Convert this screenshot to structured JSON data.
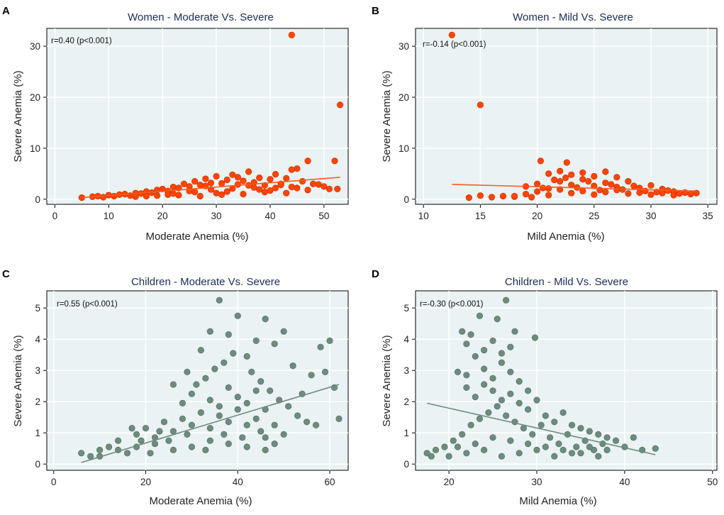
{
  "chart_data": [
    {
      "panel_label": "A",
      "type": "scatter",
      "title": "Women - Moderate Vs. Severe",
      "xlabel": "Moderate Anemia (%)",
      "ylabel": "Severe Anemia (%)",
      "xlim": [
        -1.5,
        54.5
      ],
      "ylim": [
        -1,
        33.5
      ],
      "xticks": [
        0,
        10,
        20,
        30,
        40,
        50
      ],
      "yticks": [
        0,
        10,
        20,
        30
      ],
      "annotation": "r=0.40 (p<0.001)",
      "point_color": "#ff4500",
      "point_stroke": "#d03000",
      "line_color": "#ff5a1f",
      "fit_line": [
        [
          5,
          0.3
        ],
        [
          53,
          4.3
        ]
      ],
      "points": [
        [
          44,
          32.2
        ],
        [
          53,
          18.5
        ],
        [
          52,
          7.5
        ],
        [
          45,
          6
        ],
        [
          44,
          5.8
        ],
        [
          47,
          7.5
        ],
        [
          51,
          2
        ],
        [
          52.5,
          2
        ],
        [
          5,
          0.3
        ],
        [
          7,
          0.5
        ],
        [
          8,
          0.6
        ],
        [
          9,
          0.4
        ],
        [
          10,
          0.8
        ],
        [
          11,
          0.6
        ],
        [
          12,
          0.9
        ],
        [
          13,
          1
        ],
        [
          14,
          0.7
        ],
        [
          15,
          1.2
        ],
        [
          16,
          1.1
        ],
        [
          17,
          1.5
        ],
        [
          18,
          1.3
        ],
        [
          19,
          1.8
        ],
        [
          20,
          2
        ],
        [
          21,
          1.6
        ],
        [
          22,
          2.4
        ],
        [
          23,
          2.2
        ],
        [
          24,
          3
        ],
        [
          25,
          2.5
        ],
        [
          26,
          3.5
        ],
        [
          27,
          2.8
        ],
        [
          28,
          4
        ],
        [
          29,
          3.2
        ],
        [
          30,
          4.5
        ],
        [
          31,
          3.1
        ],
        [
          32,
          3.8
        ],
        [
          33,
          4.8
        ],
        [
          34,
          2.9
        ],
        [
          35,
          3.6
        ],
        [
          36,
          5.4
        ],
        [
          37,
          3.3
        ],
        [
          38,
          4.2
        ],
        [
          39,
          2.7
        ],
        [
          40,
          3.9
        ],
        [
          41,
          4.9
        ],
        [
          42,
          3
        ],
        [
          43,
          4.1
        ],
        [
          44,
          2.4
        ],
        [
          46,
          3.5
        ],
        [
          48,
          3
        ],
        [
          50,
          2.5
        ],
        [
          23,
          0.8
        ],
        [
          27,
          0.6
        ],
        [
          31,
          0.9
        ],
        [
          35,
          1
        ],
        [
          39,
          1.4
        ],
        [
          43,
          1.2
        ],
        [
          47,
          1.8
        ],
        [
          25,
          1.6
        ],
        [
          29,
          1.9
        ],
        [
          33,
          2.1
        ],
        [
          37,
          2.3
        ],
        [
          41,
          2.2
        ],
        [
          21,
          0.9
        ],
        [
          19,
          0.7
        ],
        [
          17,
          0.6
        ],
        [
          15,
          0.5
        ],
        [
          34,
          4.3
        ],
        [
          28,
          2.6
        ],
        [
          32,
          1.5
        ],
        [
          36,
          2.7
        ],
        [
          40,
          1.7
        ],
        [
          30,
          1.2
        ],
        [
          26,
          1.4
        ],
        [
          22,
          1.1
        ],
        [
          38,
          1.9
        ],
        [
          42,
          2.8
        ],
        [
          45,
          2.2
        ],
        [
          49,
          2.9
        ]
      ]
    },
    {
      "panel_label": "B",
      "type": "scatter",
      "title": "Women - Mild Vs. Severe",
      "xlabel": "Mild Anemia (%)",
      "ylabel": "Severe Anemia (%)",
      "xlim": [
        9.3,
        35.8
      ],
      "ylim": [
        -1,
        33.5
      ],
      "xticks": [
        10,
        15,
        20,
        25,
        30,
        35
      ],
      "yticks": [
        0,
        10,
        20,
        30
      ],
      "annotation": "r=-0.14 (p<0.001)",
      "point_color": "#ff4500",
      "point_stroke": "#d03000",
      "line_color": "#ff5a1f",
      "fit_line": [
        [
          12.5,
          2.9
        ],
        [
          34,
          1.6
        ]
      ],
      "points": [
        [
          12.5,
          32.2
        ],
        [
          15,
          18.5
        ],
        [
          14,
          0.3
        ],
        [
          15,
          0.7
        ],
        [
          16,
          0.4
        ],
        [
          17,
          0.6
        ],
        [
          18,
          0.5
        ],
        [
          20.3,
          7.5
        ],
        [
          22.6,
          7.2
        ],
        [
          21,
          5
        ],
        [
          22,
          5.5
        ],
        [
          23,
          4.8
        ],
        [
          24,
          5.2
        ],
        [
          25,
          4.5
        ],
        [
          26,
          5.4
        ],
        [
          27,
          4.3
        ],
        [
          19,
          2.5
        ],
        [
          20,
          3
        ],
        [
          21,
          2.1
        ],
        [
          22,
          3.5
        ],
        [
          23,
          2.8
        ],
        [
          24,
          3.9
        ],
        [
          25,
          2.6
        ],
        [
          26,
          3.2
        ],
        [
          27,
          2.4
        ],
        [
          28,
          3.5
        ],
        [
          29,
          2.2
        ],
        [
          30,
          2.7
        ],
        [
          31,
          2
        ],
        [
          32,
          1.5
        ],
        [
          33,
          1.3
        ],
        [
          34,
          1.2
        ],
        [
          19,
          1
        ],
        [
          20,
          1.5
        ],
        [
          21,
          0.8
        ],
        [
          22,
          1.9
        ],
        [
          23,
          1.2
        ],
        [
          24,
          1.6
        ],
        [
          25,
          0.9
        ],
        [
          26,
          1.4
        ],
        [
          27,
          1.8
        ],
        [
          28,
          1.1
        ],
        [
          29,
          1.3
        ],
        [
          30,
          0.9
        ],
        [
          31,
          1.2
        ],
        [
          32,
          0.8
        ],
        [
          18,
          0.6
        ],
        [
          19.5,
          0.4
        ],
        [
          20.5,
          2.2
        ],
        [
          21.5,
          3.8
        ],
        [
          22.5,
          4.2
        ],
        [
          23.5,
          2.3
        ],
        [
          24.5,
          3.5
        ],
        [
          25.5,
          1.8
        ],
        [
          26.5,
          2.9
        ],
        [
          27.5,
          1.9
        ],
        [
          28.5,
          2.6
        ],
        [
          29.5,
          1.6
        ],
        [
          30.5,
          1.4
        ],
        [
          31.5,
          1.7
        ],
        [
          32.5,
          1.1
        ],
        [
          33.5,
          1
        ]
      ]
    },
    {
      "panel_label": "C",
      "type": "scatter",
      "title": "Children - Moderate Vs. Severe",
      "xlabel": "Moderate Anemia (%)",
      "ylabel": "Severe Anemia (%)",
      "xlim": [
        -1.5,
        64
      ],
      "ylim": [
        -0.2,
        5.55
      ],
      "xticks": [
        0,
        20,
        40,
        60
      ],
      "yticks": [
        0,
        1,
        2,
        3,
        4,
        5
      ],
      "annotation": "r=0.55 (p<0.001)",
      "point_color": "#6e8c7e",
      "point_stroke": "#5a7567",
      "line_color": "#6e8c7e",
      "fit_line": [
        [
          6,
          0.05
        ],
        [
          62,
          2.55
        ]
      ],
      "points": [
        [
          36,
          5.25
        ],
        [
          40,
          4.75
        ],
        [
          46,
          4.65
        ],
        [
          34,
          4.25
        ],
        [
          38,
          4.15
        ],
        [
          50,
          4.25
        ],
        [
          32,
          3.65
        ],
        [
          44,
          3.95
        ],
        [
          39,
          3.55
        ],
        [
          42,
          3.45
        ],
        [
          48,
          3.85
        ],
        [
          58,
          3.75
        ],
        [
          60,
          3.95
        ],
        [
          52,
          3.15
        ],
        [
          56,
          2.85
        ],
        [
          62,
          1.45
        ],
        [
          59,
          2.95
        ],
        [
          61,
          2.45
        ],
        [
          54,
          2.25
        ],
        [
          57,
          1.25
        ],
        [
          29,
          2.95
        ],
        [
          35,
          3.05
        ],
        [
          31,
          2.55
        ],
        [
          33,
          2.75
        ],
        [
          37,
          3.25
        ],
        [
          43,
          2.95
        ],
        [
          45,
          2.65
        ],
        [
          47,
          2.35
        ],
        [
          49,
          2.05
        ],
        [
          51,
          1.85
        ],
        [
          53,
          1.55
        ],
        [
          55,
          1.35
        ],
        [
          26,
          2.55
        ],
        [
          28,
          1.95
        ],
        [
          30,
          2.25
        ],
        [
          34,
          2.05
        ],
        [
          36,
          1.85
        ],
        [
          38,
          2.45
        ],
        [
          40,
          2.15
        ],
        [
          42,
          1.95
        ],
        [
          44,
          2.35
        ],
        [
          46,
          1.75
        ],
        [
          48,
          1.25
        ],
        [
          50,
          0.95
        ],
        [
          6,
          0.35
        ],
        [
          8,
          0.25
        ],
        [
          10,
          0.45
        ],
        [
          12,
          0.55
        ],
        [
          14,
          0.75
        ],
        [
          16,
          0.35
        ],
        [
          18,
          0.95
        ],
        [
          20,
          1.15
        ],
        [
          22,
          0.85
        ],
        [
          24,
          1.35
        ],
        [
          26,
          1.05
        ],
        [
          28,
          1.45
        ],
        [
          30,
          1.25
        ],
        [
          32,
          1.65
        ],
        [
          34,
          1.15
        ],
        [
          36,
          1.55
        ],
        [
          38,
          1.35
        ],
        [
          40,
          1.75
        ],
        [
          42,
          1.25
        ],
        [
          44,
          1.45
        ],
        [
          46,
          0.85
        ],
        [
          48,
          0.65
        ],
        [
          10,
          0.25
        ],
        [
          14,
          0.45
        ],
        [
          18,
          0.55
        ],
        [
          22,
          0.65
        ],
        [
          26,
          0.45
        ],
        [
          30,
          0.55
        ],
        [
          34,
          0.75
        ],
        [
          38,
          0.65
        ],
        [
          42,
          0.55
        ],
        [
          46,
          0.45
        ],
        [
          17,
          1.15
        ],
        [
          21,
          0.35
        ],
        [
          25,
          0.75
        ],
        [
          29,
          0.95
        ],
        [
          33,
          0.45
        ],
        [
          37,
          0.95
        ],
        [
          41,
          0.85
        ],
        [
          45,
          1.05
        ],
        [
          19,
          0.75
        ],
        [
          23,
          1.05
        ]
      ]
    },
    {
      "panel_label": "D",
      "type": "scatter",
      "title": "Children - Mild Vs. Severe",
      "xlabel": "Mild Anemia (%)",
      "ylabel": "Severe Anemia (%)",
      "xlim": [
        16.2,
        50.5
      ],
      "ylim": [
        -0.2,
        5.55
      ],
      "xticks": [
        20,
        30,
        40,
        50
      ],
      "yticks": [
        0,
        1,
        2,
        3,
        4,
        5
      ],
      "annotation": "r=-0.30 (p<0.001)",
      "point_color": "#6e8c7e",
      "point_stroke": "#5a7567",
      "line_color": "#6e8c7e",
      "fit_line": [
        [
          17.5,
          1.95
        ],
        [
          43.5,
          0.3
        ]
      ],
      "points": [
        [
          26.5,
          5.25
        ],
        [
          23.5,
          4.75
        ],
        [
          25.5,
          4.65
        ],
        [
          21.5,
          4.25
        ],
        [
          22.5,
          4.15
        ],
        [
          27.5,
          4.25
        ],
        [
          29.8,
          4.05
        ],
        [
          22,
          3.85
        ],
        [
          24,
          3.65
        ],
        [
          25,
          3.95
        ],
        [
          26,
          3.55
        ],
        [
          27,
          3.75
        ],
        [
          23,
          3.45
        ],
        [
          21,
          2.95
        ],
        [
          22,
          2.85
        ],
        [
          24,
          3.05
        ],
        [
          25,
          2.75
        ],
        [
          26,
          3.25
        ],
        [
          27,
          2.95
        ],
        [
          28,
          2.65
        ],
        [
          29,
          2.35
        ],
        [
          22,
          2.45
        ],
        [
          23,
          2.15
        ],
        [
          24,
          2.55
        ],
        [
          25,
          2.35
        ],
        [
          26,
          2.05
        ],
        [
          27,
          2.25
        ],
        [
          28,
          1.95
        ],
        [
          29,
          1.75
        ],
        [
          30,
          2.05
        ],
        [
          31,
          1.55
        ],
        [
          32,
          1.35
        ],
        [
          33,
          1.65
        ],
        [
          34,
          1.25
        ],
        [
          35,
          1.15
        ],
        [
          36,
          1.05
        ],
        [
          37,
          0.95
        ],
        [
          38,
          0.85
        ],
        [
          39,
          0.75
        ],
        [
          40,
          0.55
        ],
        [
          41,
          0.85
        ],
        [
          43.5,
          0.5
        ],
        [
          42,
          0.45
        ],
        [
          17.5,
          0.35
        ],
        [
          18.5,
          0.45
        ],
        [
          19.5,
          0.55
        ],
        [
          20.5,
          0.75
        ],
        [
          21.5,
          0.95
        ],
        [
          22.5,
          1.25
        ],
        [
          23.5,
          1.45
        ],
        [
          24.5,
          1.65
        ],
        [
          25.5,
          1.85
        ],
        [
          26.5,
          1.55
        ],
        [
          27.5,
          1.35
        ],
        [
          28.5,
          1.15
        ],
        [
          29.5,
          0.95
        ],
        [
          30.5,
          1.25
        ],
        [
          31.5,
          0.85
        ],
        [
          32.5,
          0.65
        ],
        [
          33.5,
          0.95
        ],
        [
          34.5,
          0.55
        ],
        [
          35.5,
          0.75
        ],
        [
          36.5,
          0.45
        ],
        [
          37.5,
          0.65
        ],
        [
          20,
          0.25
        ],
        [
          22,
          0.35
        ],
        [
          24,
          0.45
        ],
        [
          26,
          0.25
        ],
        [
          28,
          0.35
        ],
        [
          30,
          0.45
        ],
        [
          32,
          0.25
        ],
        [
          34,
          0.35
        ],
        [
          36,
          0.55
        ],
        [
          38,
          0.45
        ],
        [
          18,
          0.25
        ],
        [
          21,
          0.55
        ],
        [
          23,
          0.65
        ],
        [
          25,
          0.85
        ],
        [
          27,
          0.75
        ],
        [
          29,
          0.65
        ],
        [
          31,
          0.55
        ],
        [
          33,
          0.45
        ],
        [
          35,
          0.35
        ],
        [
          37,
          0.25
        ]
      ]
    }
  ]
}
